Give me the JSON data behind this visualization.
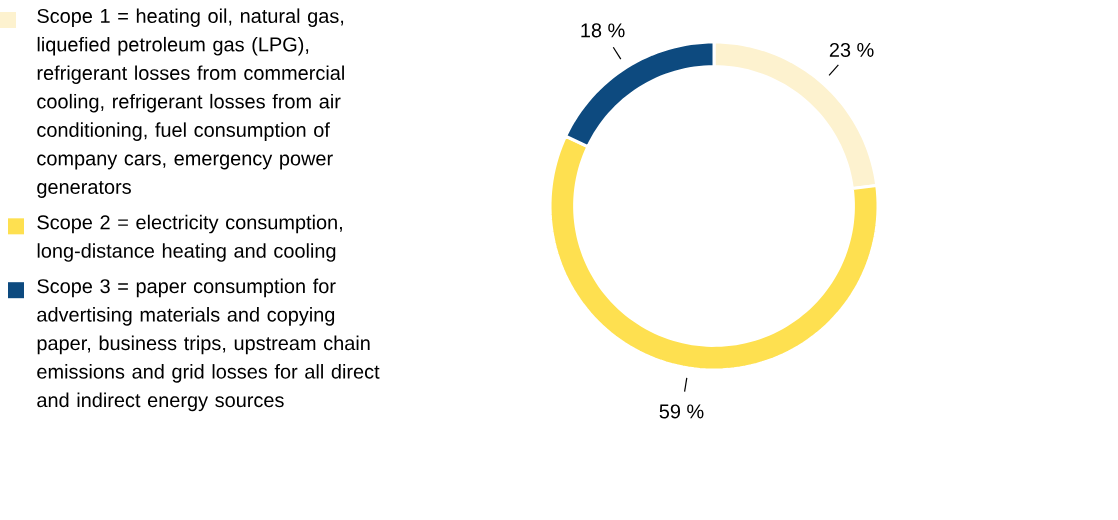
{
  "chart_data": {
    "type": "donut",
    "categories": [
      "Scope 1 = heating oil, natural gas, liquefied petroleum gas (LPG), refrigerant losses from commercial cooling, refrigerant losses from air conditioning, fuel consumption of company cars, emergency power generators",
      "Scope 2 = electricity consumption, long-distance heating and cooling",
      "Scope 3 = paper consumption for advertising materials and copying paper, business trips, upstream chain emissions and grid losses for all direct and indirect energy sources"
    ],
    "values": [
      23,
      59,
      18
    ],
    "colors": [
      "#fdf2cf",
      "#fee050",
      "#0d4a7f"
    ],
    "value_labels": [
      "23 %",
      "59 %",
      "18 %"
    ],
    "legend": "left"
  }
}
